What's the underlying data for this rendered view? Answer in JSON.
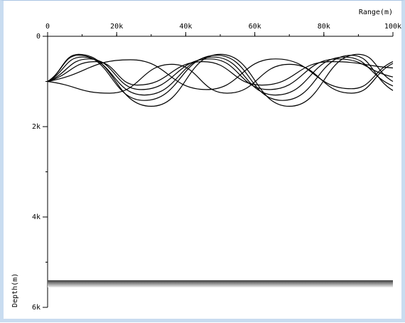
{
  "chart_data": {
    "type": "line",
    "title": "",
    "xlabel": "Range(m)",
    "ylabel": "Depth(m)",
    "xlim": [
      0,
      100000
    ],
    "ylim": [
      0,
      6000
    ],
    "y_inverted": true,
    "x_axis_position": "top",
    "x_ticks": [
      {
        "value": 0,
        "label": "0"
      },
      {
        "value": 20000,
        "label": "20k"
      },
      {
        "value": 40000,
        "label": "40k"
      },
      {
        "value": 60000,
        "label": "60k"
      },
      {
        "value": 80000,
        "label": "80k"
      },
      {
        "value": 100000,
        "label": "100k"
      }
    ],
    "y_ticks": [
      {
        "value": 0,
        "label": "0"
      },
      {
        "value": 2000,
        "label": "2k"
      },
      {
        "value": 4000,
        "label": "4k"
      },
      {
        "value": 6000,
        "label": "6k"
      }
    ],
    "x_minor_step": 10000,
    "y_minor_step": 1000,
    "source": {
      "x": 0,
      "depth": 1000
    },
    "seabed_depth": 5400,
    "series": [
      {
        "x": [
          0,
          9000,
          30000,
          50000,
          70000,
          90000,
          100000
        ],
        "y": [
          1000,
          400,
          1550,
          400,
          1550,
          400,
          1000
        ]
      },
      {
        "x": [
          0,
          9000,
          28000,
          49000,
          68000,
          88000,
          100000
        ],
        "y": [
          1000,
          420,
          1420,
          420,
          1420,
          420,
          1200
        ]
      },
      {
        "x": [
          0,
          10000,
          28000,
          48000,
          66000,
          86000,
          100000
        ],
        "y": [
          1000,
          460,
          1300,
          460,
          1300,
          460,
          1100
        ]
      },
      {
        "x": [
          0,
          12000,
          27000,
          47000,
          64000,
          84000,
          100000
        ],
        "y": [
          1000,
          500,
          1180,
          500,
          1180,
          500,
          900
        ]
      },
      {
        "x": [
          0,
          14000,
          26000,
          45000,
          62000,
          82000,
          100000
        ],
        "y": [
          1000,
          560,
          1080,
          560,
          1080,
          560,
          700
        ]
      },
      {
        "x": [
          0,
          18000,
          36000,
          52000,
          70000,
          88000,
          100000
        ],
        "y": [
          1000,
          1260,
          620,
          1260,
          620,
          1260,
          600
        ]
      },
      {
        "x": [
          0,
          24000,
          46000,
          66000,
          88000,
          100000
        ],
        "y": [
          1000,
          520,
          1180,
          500,
          1160,
          560
        ]
      }
    ]
  }
}
